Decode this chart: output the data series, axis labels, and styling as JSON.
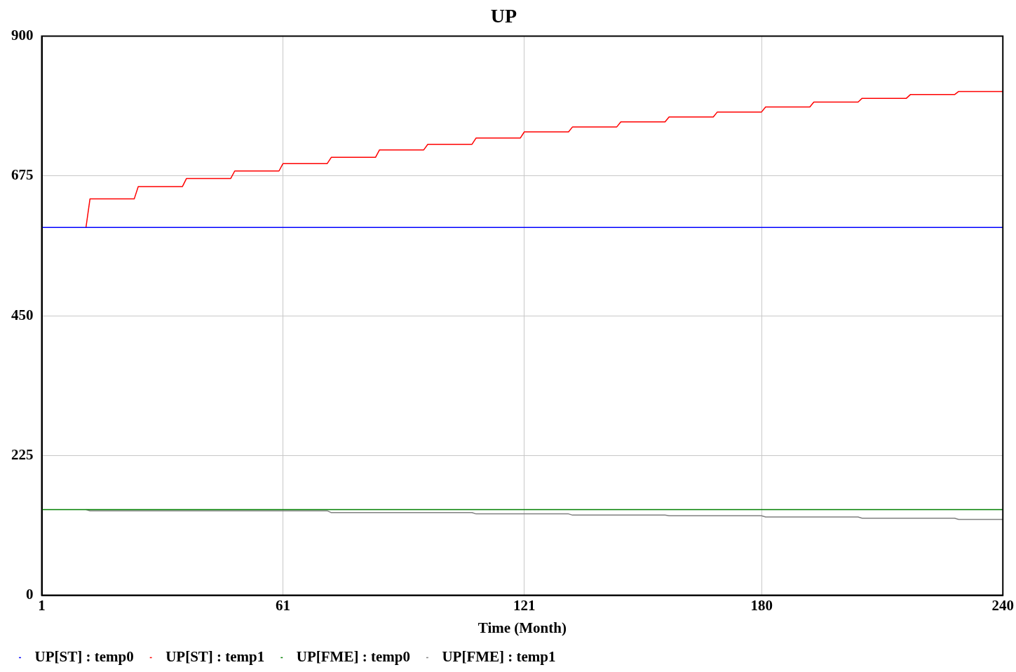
{
  "chart_data": {
    "type": "line",
    "title": "UP",
    "xlabel": "Time (Month)",
    "xlim": [
      1,
      240
    ],
    "xticks": [
      1,
      61,
      121,
      180,
      240
    ],
    "ylim": [
      0,
      900
    ],
    "yticks": [
      0,
      225,
      450,
      675,
      900
    ],
    "grid": true,
    "legend": "bottom",
    "series": [
      {
        "name": "UP[ST] : temp0",
        "color": "#0000ff",
        "x": [
          1,
          240
        ],
        "values": [
          592,
          592
        ]
      },
      {
        "name": "UP[ST] : temp1",
        "color": "#ff0000",
        "x": [
          12,
          13,
          24,
          25,
          36,
          37,
          48,
          49,
          60,
          61,
          72,
          73,
          84,
          85,
          96,
          97,
          108,
          109,
          120,
          121,
          132,
          133,
          144,
          145,
          156,
          157,
          168,
          169,
          180,
          181,
          192,
          193,
          204,
          205,
          216,
          217,
          228,
          229,
          240
        ],
        "values": [
          592,
          638,
          638,
          658,
          658,
          671,
          671,
          683,
          683,
          695,
          695,
          705,
          705,
          717,
          717,
          726,
          726,
          736,
          736,
          746,
          746,
          754,
          754,
          762,
          762,
          770,
          770,
          778,
          778,
          786,
          786,
          794,
          794,
          800,
          800,
          806,
          806,
          811,
          811
        ]
      },
      {
        "name": "UP[FME] : temp0",
        "color": "#008000",
        "x": [
          1,
          240
        ],
        "values": [
          138,
          138
        ]
      },
      {
        "name": "UP[FME] : temp1",
        "color": "#808080",
        "x": [
          12,
          13,
          72,
          73,
          108,
          109,
          132,
          133,
          156,
          157,
          180,
          181,
          204,
          205,
          228,
          229,
          240
        ],
        "values": [
          138,
          136,
          136,
          133,
          133,
          131,
          131,
          129,
          129,
          128,
          128,
          126,
          126,
          124,
          124,
          122,
          122
        ]
      }
    ]
  }
}
